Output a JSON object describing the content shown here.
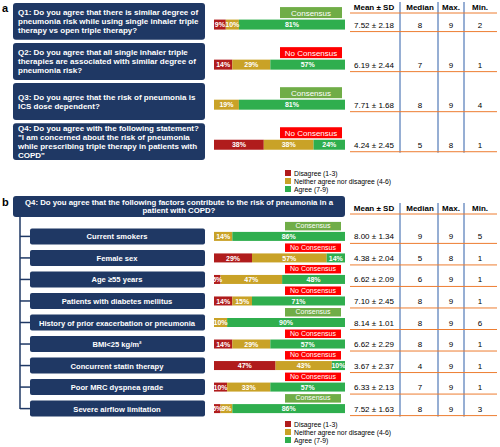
{
  "chart_data": [
    {
      "type": "bar",
      "orientation": "horizontal",
      "stacked": true,
      "data_labels": true,
      "tick_labels": false,
      "panel_label": "a",
      "xlim": [
        0,
        100
      ],
      "categories": [
        "Q1: Do you agree that there is similar degree of pneumonia risk while using single inhaler triple therapy vs open triple therapy?",
        "Q2: Do you agree that all single inhaler triple therapies are associated with similar degree of pneumonia risk?",
        "Q3: Do you agree that the risk of pneumonia is ICS dose dependent?",
        "Q4: Do you agree with the following statement? \"I am concerned about the risk of pneumonia while prescribing triple therapy in patients with COPD\""
      ],
      "series": [
        {
          "name": "Disagree (1-3)",
          "color": "#b01c1c",
          "values": [
            9,
            14,
            0,
            38
          ],
          "value_labels": [
            "9%",
            "14%",
            null,
            "38%"
          ]
        },
        {
          "name": "Neither agree nor disagree (4-6)",
          "color": "#c9a227",
          "values": [
            10,
            29,
            19,
            38
          ],
          "value_labels": [
            "10%",
            "29%",
            "19%",
            "38%"
          ]
        },
        {
          "name": "Agree (7-9)",
          "color": "#2fae4e",
          "values": [
            81,
            57,
            81,
            24
          ],
          "value_labels": [
            "81%",
            "57%",
            "81%",
            "24%"
          ]
        }
      ],
      "consensus": [
        "Consensus",
        "No Consensus",
        "Consensus",
        "No Consensus"
      ],
      "table": {
        "columns": [
          "Mean ± SD",
          "Median",
          "Max.",
          "Min."
        ],
        "rows": [
          [
            "7.52 ± 2.18",
            8,
            9,
            2
          ],
          [
            "6.19 ± 2.44",
            7,
            9,
            1
          ],
          [
            "7.71 ± 1.68",
            8,
            9,
            4
          ],
          [
            "4.24 ± 2.45",
            5,
            8,
            1
          ]
        ]
      }
    },
    {
      "type": "bar",
      "orientation": "horizontal",
      "stacked": true,
      "data_labels": true,
      "tick_labels": false,
      "panel_label": "b",
      "title": "Q4: Do you agree that the following factors contribute to the risk of pneumonia in a patient with COPD?",
      "xlim": [
        0,
        100
      ],
      "categories": [
        "Current smokers",
        "Female sex",
        "Age ≥55 years",
        "Patients with diabetes mellitus",
        "History of prior exacerbation or pneumonia",
        "BMI<25 kg/m²",
        "Concurrent statin therapy",
        "Poor MRC dyspnea grade",
        "Severe airflow limitation"
      ],
      "series": [
        {
          "name": "Disagree (1-3)",
          "color": "#b01c1c",
          "values": [
            0,
            29,
            5,
            14,
            0,
            14,
            47,
            10,
            5
          ],
          "value_labels": [
            null,
            "29%",
            "5%",
            "14%",
            null,
            "14%",
            "47%",
            "10%",
            "5%"
          ]
        },
        {
          "name": "Neither agree nor disagree (4-6)",
          "color": "#c9a227",
          "values": [
            14,
            57,
            47,
            15,
            10,
            29,
            43,
            33,
            9
          ],
          "value_labels": [
            "14%",
            "57%",
            "47%",
            "15%",
            "10%",
            "29%",
            "43%",
            "33%",
            "9%"
          ]
        },
        {
          "name": "Agree (7-9)",
          "color": "#2fae4e",
          "values": [
            86,
            14,
            48,
            71,
            90,
            57,
            10,
            57,
            86
          ],
          "value_labels": [
            "86%",
            "14%",
            "48%",
            "71%",
            "90%",
            "57%",
            "10%",
            "57%",
            "86%"
          ]
        }
      ],
      "consensus": [
        "Consensus",
        "No Consensus",
        "No Consensus",
        "No Consensus",
        "Consensus",
        "No Consensus",
        "No Consensus",
        "No Consensus",
        "Consensus"
      ],
      "table": {
        "columns": [
          "Mean ± SD",
          "Median",
          "Max.",
          "Min."
        ],
        "rows": [
          [
            "8.00 ± 1.34",
            9,
            9,
            5
          ],
          [
            "4.38 ± 2.04",
            5,
            8,
            1
          ],
          [
            "6.62 ± 2.09",
            6,
            9,
            1
          ],
          [
            "7.10 ± 2.45",
            8,
            9,
            1
          ],
          [
            "8.14 ± 1.01",
            8,
            9,
            6
          ],
          [
            "6.62 ± 2.29",
            8,
            9,
            1
          ],
          [
            "3.67 ± 2.37",
            4,
            9,
            1
          ],
          [
            "6.33 ± 2.13",
            7,
            9,
            1
          ],
          [
            "7.52 ± 1.63",
            8,
            9,
            3
          ]
        ]
      }
    }
  ]
}
